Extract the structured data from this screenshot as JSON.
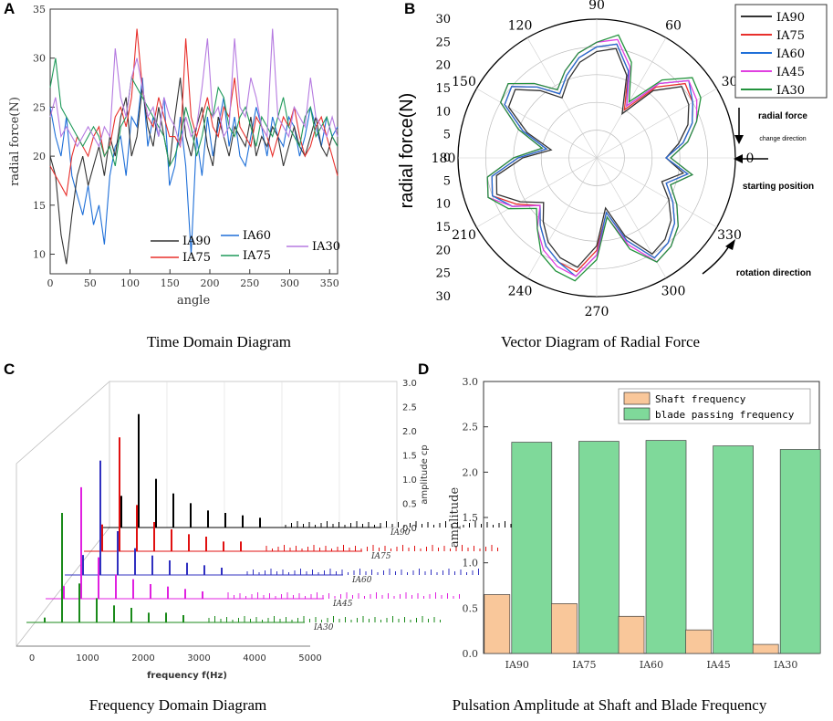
{
  "figure": {
    "panels": {
      "a": {
        "label": "A",
        "caption": "Time Domain Diagram"
      },
      "b": {
        "label": "B",
        "caption": "Vector Diagram of Radial Force"
      },
      "c": {
        "label": "C",
        "caption": "Frequency Domain Diagram"
      },
      "d": {
        "label": "D",
        "caption": "Pulsation Amplitude at Shaft and Blade Frequency"
      }
    }
  },
  "colors": {
    "IA90": "#333333",
    "IA75": "#e8302c",
    "IA60": "#1e6fd8",
    "IA75b": "#1f9a5a",
    "IA30": "#b57ae0",
    "IA45": "#e040e0",
    "IA30g": "#23933d",
    "shaft": "#f9c79a",
    "blade": "#7fd99a",
    "bluesp": "#3030c0"
  },
  "chart_data": [
    {
      "id": "time_domain",
      "type": "line",
      "xlabel": "angle",
      "ylabel": "radial force(N)",
      "xlim": [
        0,
        360
      ],
      "ylim": [
        8,
        35
      ],
      "xticks": [
        "0",
        "50",
        "100",
        "150",
        "200",
        "250",
        "300",
        "350"
      ],
      "yticks": [
        "10",
        "15",
        "20",
        "25",
        "30",
        "35"
      ],
      "legend": [
        "IA90",
        "IA60",
        "IA75",
        "IA75",
        "IA30"
      ],
      "series": [
        {
          "name": "IA90",
          "values": [
            20,
            18,
            12,
            9,
            14,
            18,
            20,
            17,
            19,
            21,
            18,
            22,
            20,
            24,
            26,
            20,
            22,
            27,
            23,
            21,
            25,
            22,
            19,
            24,
            28,
            22,
            20,
            23,
            25,
            21,
            19,
            24,
            22,
            20,
            23,
            22,
            21,
            24,
            20,
            22,
            21,
            23,
            22,
            19,
            21,
            23,
            21,
            20,
            22,
            24,
            21,
            20,
            22,
            21
          ]
        },
        {
          "name": "IA75",
          "values": [
            19,
            18,
            17,
            16,
            20,
            22,
            21,
            20,
            22,
            23,
            20,
            21,
            24,
            25,
            23,
            26,
            33,
            27,
            24,
            23,
            26,
            24,
            22,
            22,
            21,
            32,
            24,
            22,
            24,
            26,
            23,
            22,
            25,
            24,
            28,
            23,
            22,
            21,
            24,
            23,
            22,
            20,
            22,
            24,
            23,
            25,
            22,
            20,
            21,
            23,
            24,
            22,
            20,
            18
          ]
        },
        {
          "name": "IA60",
          "values": [
            25,
            22,
            20,
            24,
            18,
            16,
            14,
            17,
            13,
            15,
            11,
            18,
            21,
            22,
            18,
            24,
            23,
            28,
            21,
            24,
            22,
            26,
            17,
            19,
            24,
            19,
            10,
            22,
            18,
            24,
            20,
            23,
            26,
            21,
            24,
            20,
            19,
            22,
            25,
            23,
            20,
            24,
            22,
            21,
            24,
            23,
            20,
            22,
            25,
            23,
            21,
            24,
            22,
            23
          ]
        },
        {
          "name": "IA75",
          "values": [
            27,
            30,
            25,
            24,
            23,
            22,
            21,
            22,
            23,
            22,
            20,
            21,
            19,
            23,
            24,
            28,
            27,
            26,
            25,
            24,
            23,
            22,
            19,
            20,
            22,
            25,
            23,
            20,
            22,
            25,
            24,
            27,
            26,
            23,
            22,
            24,
            25,
            23,
            21,
            24,
            23,
            22,
            24,
            26,
            23,
            22,
            21,
            24,
            25,
            22,
            23,
            24,
            22,
            21
          ]
        },
        {
          "name": "IA30",
          "values": [
            24,
            26,
            22,
            23,
            22,
            21,
            22,
            23,
            22,
            21,
            23,
            22,
            31,
            26,
            24,
            28,
            30,
            27,
            24,
            25,
            22,
            26,
            24,
            23,
            21,
            24,
            22,
            23,
            27,
            32,
            24,
            25,
            22,
            23,
            32,
            25,
            24,
            28,
            26,
            23,
            22,
            33,
            24,
            23,
            22,
            25,
            24,
            23,
            28,
            24,
            23,
            22,
            24,
            22
          ]
        }
      ]
    },
    {
      "id": "polar",
      "type": "line",
      "title": "",
      "ylabel": "radial force(N)",
      "angles": [
        "90",
        "60",
        "30",
        "0",
        "330",
        "300",
        "270",
        "240",
        "210",
        "180",
        "150",
        "120"
      ],
      "radial_ticks": [
        "30",
        "25",
        "20",
        "15",
        "10",
        "5",
        "0",
        "5",
        "10",
        "15",
        "20",
        "25",
        "30"
      ],
      "legend": [
        "IA90",
        "IA75",
        "IA60",
        "IA45",
        "IA30"
      ],
      "annotations": [
        "radial force",
        "change direction",
        "starting position",
        "rotation direction"
      ],
      "series": [
        {
          "name": "IA90",
          "values": [
            15,
            18,
            21,
            23,
            24,
            19,
            11,
            19,
            24,
            23,
            21,
            18,
            15,
            19,
            23,
            22,
            16,
            10,
            16,
            22,
            23,
            19,
            15,
            18,
            21,
            23,
            24,
            19,
            11,
            18,
            24,
            23,
            21,
            18,
            15,
            19
          ]
        },
        {
          "name": "IA75",
          "values": [
            15,
            19,
            22,
            24,
            25,
            20,
            12,
            20,
            25,
            24,
            22,
            19,
            16,
            20,
            24,
            23,
            17,
            11,
            17,
            23,
            24,
            20,
            16,
            19,
            22,
            24,
            25,
            20,
            12,
            19,
            25,
            24,
            22,
            19,
            16,
            20
          ]
        },
        {
          "name": "IA60",
          "values": [
            15,
            19,
            22,
            24,
            26,
            21,
            13,
            20,
            25,
            24,
            22,
            19,
            16,
            20,
            24,
            23,
            17,
            11,
            17,
            23,
            24,
            21,
            16,
            19,
            22,
            24,
            26,
            21,
            12,
            19,
            25,
            24,
            22,
            19,
            16,
            20
          ]
        },
        {
          "name": "IA45",
          "values": [
            16,
            20,
            23,
            25,
            26,
            21,
            13,
            21,
            26,
            25,
            23,
            20,
            17,
            21,
            25,
            24,
            18,
            12,
            18,
            24,
            25,
            21,
            16,
            20,
            23,
            25,
            26,
            21,
            13,
            20,
            26,
            25,
            23,
            20,
            17,
            21
          ]
        },
        {
          "name": "IA30",
          "values": [
            16,
            20,
            23,
            26,
            27,
            22,
            14,
            22,
            27,
            25,
            23,
            20,
            17,
            21,
            25,
            24,
            18,
            12,
            18,
            24,
            25,
            22,
            17,
            20,
            24,
            26,
            27,
            22,
            13,
            21,
            26,
            25,
            23,
            20,
            17,
            21
          ]
        }
      ]
    },
    {
      "id": "freq_3d",
      "type": "bar",
      "xlabel": "frequency f(Hz)",
      "zlabel": "amplitude cp",
      "xticks": [
        "0",
        "1000",
        "2000",
        "3000",
        "4000",
        "5000"
      ],
      "zticks": [
        "0.0",
        "0.5",
        "1.0",
        "1.5",
        "2.0",
        "2.5",
        "3.0"
      ],
      "series_labels": [
        "IA90",
        "IA75",
        "IA60",
        "IA45",
        "IA30"
      ],
      "series": [
        {
          "name": "IA90",
          "values": [
            0.65,
            2.33,
            1.0,
            0.7,
            0.5,
            0.35,
            0.3,
            0.25,
            0.2
          ]
        },
        {
          "name": "IA75",
          "values": [
            0.55,
            2.34,
            0.95,
            0.6,
            0.45,
            0.35,
            0.3,
            0.2,
            0.2
          ]
        },
        {
          "name": "IA60",
          "values": [
            0.41,
            2.35,
            0.9,
            0.55,
            0.4,
            0.3,
            0.25,
            0.2,
            0.15
          ]
        },
        {
          "name": "IA45",
          "values": [
            0.26,
            2.29,
            0.85,
            0.5,
            0.4,
            0.3,
            0.25,
            0.2,
            0.15
          ]
        },
        {
          "name": "IA30",
          "values": [
            0.1,
            2.25,
            0.8,
            0.5,
            0.35,
            0.3,
            0.2,
            0.2,
            0.15
          ]
        }
      ]
    },
    {
      "id": "pulsation",
      "type": "bar",
      "xlabel": "",
      "ylabel": "amplitude",
      "ylim": [
        0,
        3.0
      ],
      "yticks": [
        "0.0",
        "0.5",
        "1.0",
        "1.5",
        "2.0",
        "2.5",
        "3.0"
      ],
      "categories": [
        "IA90",
        "IA75",
        "IA60",
        "IA45",
        "IA30"
      ],
      "legend": [
        "Shaft frequency",
        "blade passing frequency"
      ],
      "series": [
        {
          "name": "Shaft frequency",
          "values": [
            0.65,
            0.55,
            0.41,
            0.26,
            0.1
          ]
        },
        {
          "name": "blade passing frequency",
          "values": [
            2.33,
            2.34,
            2.35,
            2.29,
            2.25
          ]
        }
      ]
    }
  ]
}
